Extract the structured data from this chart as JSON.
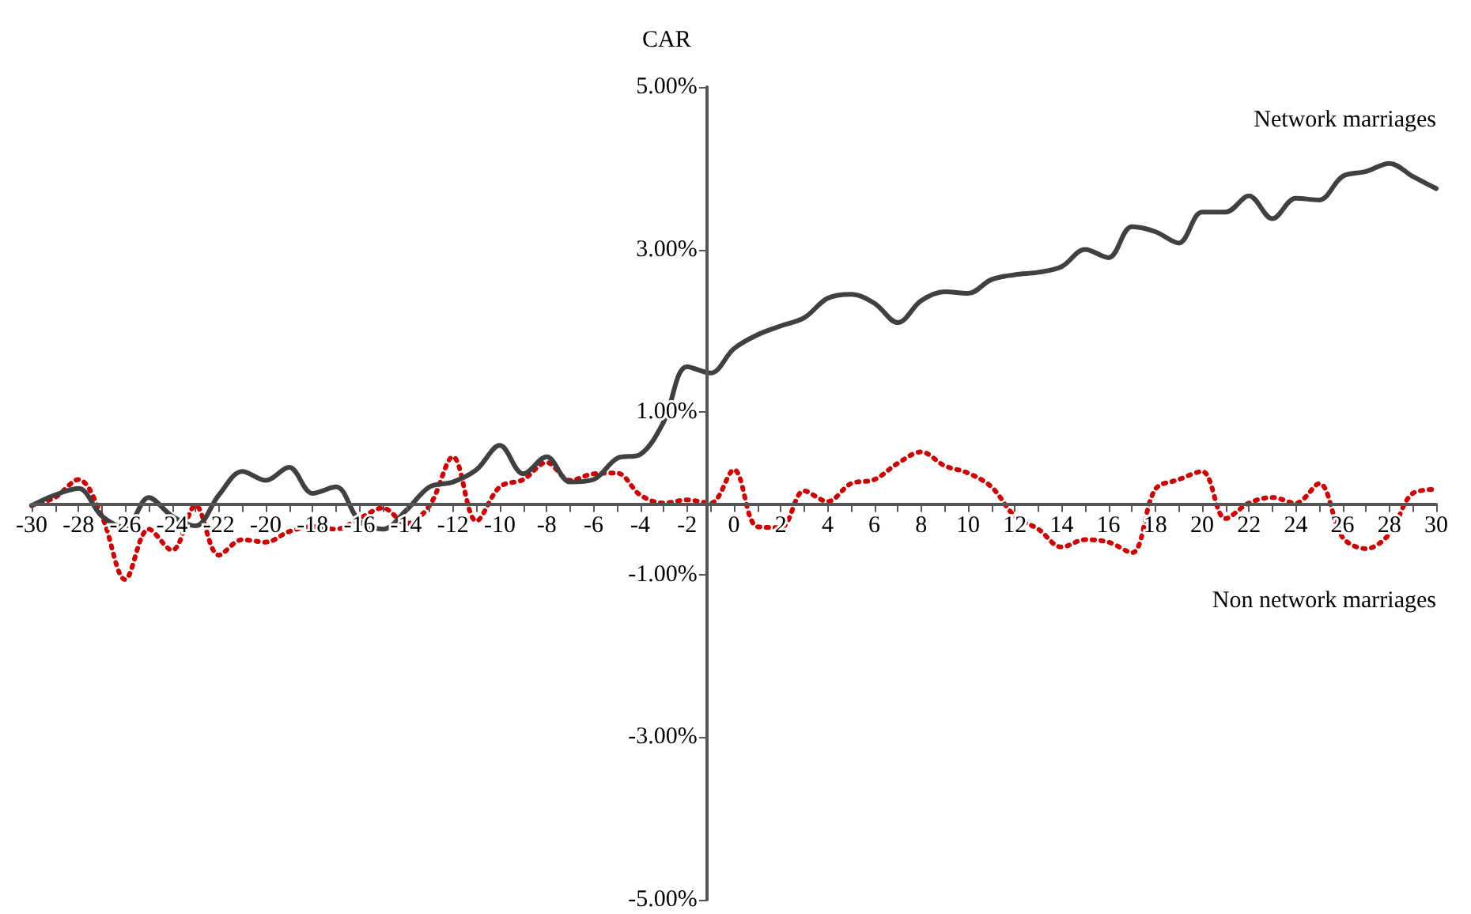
{
  "chart_data": {
    "type": "line",
    "ylabel": "CAR",
    "marker": "none",
    "legend": false,
    "x": [
      -30,
      -29,
      -28,
      -27,
      -26,
      -25,
      -24,
      -23,
      -22,
      -21,
      -20,
      -19,
      -18,
      -17,
      -16,
      -15,
      -14,
      -13,
      -12,
      -11,
      -10,
      -9,
      -8,
      -7,
      -6,
      -5,
      -4,
      -3,
      -2,
      -1,
      0,
      1,
      2,
      3,
      4,
      5,
      6,
      7,
      8,
      9,
      10,
      11,
      12,
      13,
      14,
      15,
      16,
      17,
      18,
      19,
      20,
      21,
      22,
      23,
      24,
      25,
      26,
      27,
      28,
      29,
      30
    ],
    "series": [
      {
        "name": "Network marriages",
        "color": "#404040",
        "line_style": "solid",
        "values": [
          -0.15,
          -0.02,
          0.06,
          -0.28,
          -0.42,
          -0.05,
          -0.28,
          -0.4,
          -0.02,
          0.27,
          0.16,
          0.32,
          0,
          0.08,
          -0.34,
          -0.44,
          -0.21,
          0.08,
          0.14,
          0.29,
          0.59,
          0.24,
          0.45,
          0.14,
          0.17,
          0.43,
          0.48,
          0.88,
          1.56,
          1.48,
          1.78,
          1.95,
          2.06,
          2.16,
          2.4,
          2.45,
          2.34,
          2.1,
          2.37,
          2.48,
          2.46,
          2.63,
          2.69,
          2.72,
          2.79,
          3.0,
          2.9,
          3.28,
          3.22,
          3.08,
          3.46,
          3.46,
          3.66,
          3.38,
          3.63,
          3.61,
          3.9,
          3.96,
          4.06,
          3.9,
          3.75
        ]
      },
      {
        "name": "Non network marriages",
        "color": "#cc0000",
        "line_style": "dotted",
        "values": [
          -0.15,
          -0.05,
          0.17,
          -0.28,
          -1.06,
          -0.44,
          -0.7,
          -0.15,
          -0.76,
          -0.57,
          -0.6,
          -0.47,
          -0.41,
          -0.44,
          -0.31,
          -0.18,
          -0.37,
          -0.15,
          0.45,
          -0.34,
          0.08,
          0.17,
          0.38,
          0.16,
          0.24,
          0.25,
          -0.02,
          -0.12,
          -0.08,
          -0.12,
          0.29,
          -0.41,
          -0.42,
          0.03,
          -0.1,
          0.12,
          0.17,
          0.37,
          0.51,
          0.34,
          0.25,
          0.08,
          -0.28,
          -0.44,
          -0.66,
          -0.57,
          -0.6,
          -0.73,
          0.05,
          0.17,
          0.27,
          -0.31,
          -0.12,
          -0.05,
          -0.12,
          0.12,
          -0.54,
          -0.68,
          -0.5,
          0,
          0.05
        ]
      }
    ],
    "xlim": [
      -30,
      30
    ],
    "xticks": [
      -30,
      {
        "value": -29,
        "label": null
      },
      -28,
      {
        "value": -27,
        "label": null
      },
      -26,
      {
        "value": -25,
        "label": null
      },
      -24,
      {
        "value": -23,
        "label": null
      },
      -22,
      {
        "value": -21,
        "label": null
      },
      -20,
      {
        "value": -19,
        "label": null
      },
      -18,
      {
        "value": -17,
        "label": null
      },
      -16,
      {
        "value": -15,
        "label": null
      },
      -14,
      {
        "value": -13,
        "label": null
      },
      -12,
      {
        "value": -11,
        "label": null
      },
      -10,
      {
        "value": -9,
        "label": null
      },
      -8,
      {
        "value": -7,
        "label": null
      },
      -6,
      {
        "value": -5,
        "label": null
      },
      -4,
      {
        "value": -3,
        "label": null
      },
      -2,
      {
        "value": -1,
        "label": null
      },
      0,
      {
        "value": 1,
        "label": null
      },
      2,
      {
        "value": 3,
        "label": null
      },
      4,
      {
        "value": 5,
        "label": null
      },
      6,
      {
        "value": 7,
        "label": null
      },
      8,
      {
        "value": 9,
        "label": null
      },
      10,
      {
        "value": 11,
        "label": null
      },
      12,
      {
        "value": 13,
        "label": null
      },
      14,
      {
        "value": 15,
        "label": null
      },
      16,
      {
        "value": 17,
        "label": null
      },
      18,
      {
        "value": 19,
        "label": null
      },
      20,
      {
        "value": 21,
        "label": null
      },
      22,
      {
        "value": 23,
        "label": null
      },
      24,
      {
        "value": 25,
        "label": null
      },
      26,
      {
        "value": 27,
        "label": null
      },
      28,
      {
        "value": 29,
        "label": null
      },
      30
    ],
    "ylim": [
      -5,
      5
    ],
    "yticks": [
      {
        "value": -5,
        "label": "-5.00%"
      },
      {
        "value": -3,
        "label": "-3.00%"
      },
      {
        "value": -1,
        "label": "-1.00%"
      },
      {
        "value": 1,
        "label": "1.00%"
      },
      {
        "value": 3,
        "label": "3.00%"
      },
      {
        "value": 5,
        "label": "5.00%"
      }
    ]
  }
}
